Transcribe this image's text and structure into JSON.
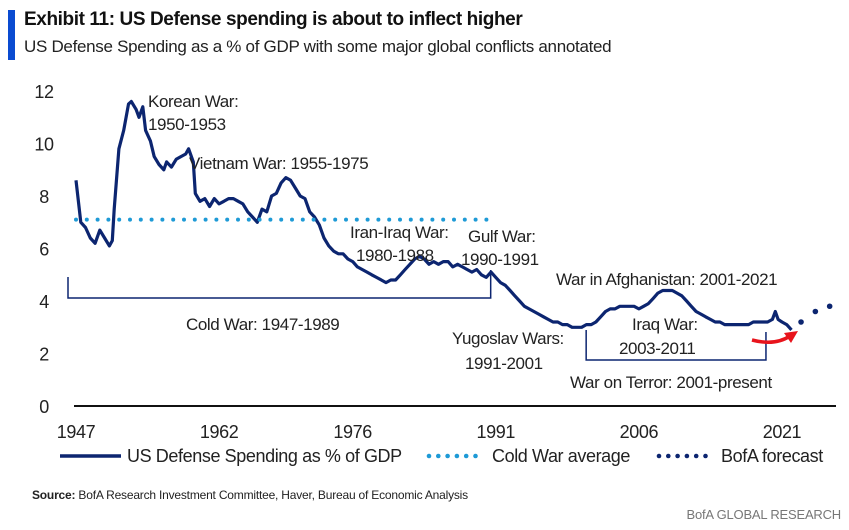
{
  "header": {
    "title": "Exhibit 11: US Defense spending is about to inflect higher",
    "subtitle": "US Defense Spending as a % of GDP with some major global conflicts annotated"
  },
  "colors": {
    "accent": "#0a4bd1",
    "main_series": "#0c2570",
    "cold_war_avg": "#1e9ad6",
    "forecast": "#0c2570",
    "arrow": "#e8141c",
    "axis": "#111111"
  },
  "chart_data": {
    "type": "line",
    "title": "US Defense Spending as a % of GDP with some major global conflicts annotated",
    "xlabel": "",
    "ylabel": "",
    "xlim": [
      1947,
      2027
    ],
    "ylim": [
      0,
      12
    ],
    "grid": false,
    "x_ticks": [
      "1947",
      "1962",
      "1976",
      "1991",
      "2006",
      "2021"
    ],
    "y_ticks": [
      "0",
      "2",
      "4",
      "6",
      "8",
      "10",
      "12"
    ],
    "legend_position": "bottom",
    "series": [
      {
        "name": "US Defense Spending as % of GDP",
        "style": "solid",
        "points": [
          [
            1947,
            8.6
          ],
          [
            1947.5,
            7.0
          ],
          [
            1948,
            6.8
          ],
          [
            1948.5,
            6.4
          ],
          [
            1949,
            6.2
          ],
          [
            1949.5,
            6.7
          ],
          [
            1950,
            6.4
          ],
          [
            1950.5,
            6.1
          ],
          [
            1950.8,
            6.3
          ],
          [
            1951,
            7.5
          ],
          [
            1951.5,
            9.8
          ],
          [
            1952,
            10.5
          ],
          [
            1952.5,
            11.5
          ],
          [
            1952.8,
            11.6
          ],
          [
            1953.3,
            11.3
          ],
          [
            1953.6,
            11.0
          ],
          [
            1954,
            11.4
          ],
          [
            1954.3,
            10.5
          ],
          [
            1954.8,
            10.1
          ],
          [
            1955.2,
            9.5
          ],
          [
            1955.7,
            9.2
          ],
          [
            1956.2,
            9.0
          ],
          [
            1956.5,
            9.3
          ],
          [
            1957,
            9.1
          ],
          [
            1957.5,
            9.4
          ],
          [
            1958,
            9.5
          ],
          [
            1958.5,
            9.6
          ],
          [
            1958.8,
            9.8
          ],
          [
            1959.3,
            9.3
          ],
          [
            1959.5,
            8.1
          ],
          [
            1960,
            7.8
          ],
          [
            1960.5,
            7.9
          ],
          [
            1961,
            7.6
          ],
          [
            1961.5,
            7.9
          ],
          [
            1962,
            7.7
          ],
          [
            1962.5,
            7.8
          ],
          [
            1963,
            7.9
          ],
          [
            1963.5,
            7.9
          ],
          [
            1964,
            7.8
          ],
          [
            1964.5,
            7.7
          ],
          [
            1965,
            7.4
          ],
          [
            1965.5,
            7.2
          ],
          [
            1966,
            7.0
          ],
          [
            1966.5,
            7.5
          ],
          [
            1967,
            7.4
          ],
          [
            1967.5,
            8.0
          ],
          [
            1968,
            8.1
          ],
          [
            1968.5,
            8.5
          ],
          [
            1969,
            8.7
          ],
          [
            1969.5,
            8.6
          ],
          [
            1970,
            8.3
          ],
          [
            1970.5,
            8.0
          ],
          [
            1971,
            7.9
          ],
          [
            1971.5,
            7.4
          ],
          [
            1972,
            7.2
          ],
          [
            1972.5,
            6.9
          ],
          [
            1973,
            6.4
          ],
          [
            1973.5,
            6.1
          ],
          [
            1974,
            5.9
          ],
          [
            1974.5,
            5.8
          ],
          [
            1975,
            5.8
          ],
          [
            1975.5,
            5.6
          ],
          [
            1976,
            5.5
          ],
          [
            1976.5,
            5.3
          ],
          [
            1977,
            5.2
          ],
          [
            1977.5,
            5.1
          ],
          [
            1978,
            5.0
          ],
          [
            1978.5,
            4.9
          ],
          [
            1979,
            4.8
          ],
          [
            1979.5,
            4.7
          ],
          [
            1980,
            4.8
          ],
          [
            1980.5,
            4.8
          ],
          [
            1981,
            5.0
          ],
          [
            1981.5,
            5.2
          ],
          [
            1982,
            5.4
          ],
          [
            1982.5,
            5.6
          ],
          [
            1983,
            5.7
          ],
          [
            1983.5,
            5.6
          ],
          [
            1984,
            5.4
          ],
          [
            1984.5,
            5.5
          ],
          [
            1985,
            5.4
          ],
          [
            1985.5,
            5.5
          ],
          [
            1986,
            5.5
          ],
          [
            1986.5,
            5.3
          ],
          [
            1987,
            5.4
          ],
          [
            1987.5,
            5.3
          ],
          [
            1988,
            5.2
          ],
          [
            1988.5,
            5.1
          ],
          [
            1989,
            5.2
          ],
          [
            1989.5,
            5.0
          ],
          [
            1990,
            4.9
          ],
          [
            1990.5,
            5.1
          ],
          [
            1991,
            4.9
          ],
          [
            1991.5,
            4.7
          ],
          [
            1992,
            4.6
          ],
          [
            1992.5,
            4.4
          ],
          [
            1993,
            4.2
          ],
          [
            1993.5,
            4.0
          ],
          [
            1994,
            3.8
          ],
          [
            1994.5,
            3.7
          ],
          [
            1995,
            3.6
          ],
          [
            1995.5,
            3.5
          ],
          [
            1996,
            3.4
          ],
          [
            1996.5,
            3.3
          ],
          [
            1997,
            3.2
          ],
          [
            1997.5,
            3.2
          ],
          [
            1998,
            3.1
          ],
          [
            1998.5,
            3.1
          ],
          [
            1999,
            3.0
          ],
          [
            1999.5,
            3.0
          ],
          [
            2000,
            3.0
          ],
          [
            2000.5,
            3.1
          ],
          [
            2001,
            3.1
          ],
          [
            2001.5,
            3.2
          ],
          [
            2002,
            3.4
          ],
          [
            2002.5,
            3.6
          ],
          [
            2003,
            3.7
          ],
          [
            2003.5,
            3.7
          ],
          [
            2004,
            3.8
          ],
          [
            2004.5,
            3.8
          ],
          [
            2005,
            3.8
          ],
          [
            2005.5,
            3.8
          ],
          [
            2006,
            3.7
          ],
          [
            2006.5,
            3.8
          ],
          [
            2007,
            3.9
          ],
          [
            2007.5,
            4.1
          ],
          [
            2008,
            4.3
          ],
          [
            2008.5,
            4.4
          ],
          [
            2009,
            4.4
          ],
          [
            2009.5,
            4.4
          ],
          [
            2010,
            4.3
          ],
          [
            2010.5,
            4.2
          ],
          [
            2011,
            4.0
          ],
          [
            2011.5,
            3.8
          ],
          [
            2012,
            3.6
          ],
          [
            2012.5,
            3.5
          ],
          [
            2013,
            3.4
          ],
          [
            2013.5,
            3.3
          ],
          [
            2014,
            3.2
          ],
          [
            2014.5,
            3.2
          ],
          [
            2015,
            3.1
          ],
          [
            2015.5,
            3.1
          ],
          [
            2016,
            3.1
          ],
          [
            2016.5,
            3.1
          ],
          [
            2017,
            3.1
          ],
          [
            2017.5,
            3.1
          ],
          [
            2018,
            3.2
          ],
          [
            2018.5,
            3.2
          ],
          [
            2019,
            3.2
          ],
          [
            2019.5,
            3.2
          ],
          [
            2020,
            3.3
          ],
          [
            2020.3,
            3.6
          ],
          [
            2020.6,
            3.3
          ],
          [
            2021,
            3.2
          ],
          [
            2021.5,
            3.1
          ],
          [
            2022,
            2.9
          ]
        ]
      },
      {
        "name": "Cold War average",
        "style": "dotted",
        "points": [
          [
            1947,
            7.1
          ],
          [
            1989,
            7.1
          ]
        ]
      },
      {
        "name": "BofA forecast",
        "style": "dotted",
        "points": [
          [
            2023,
            3.2
          ],
          [
            2024.5,
            3.6
          ],
          [
            2026,
            3.8
          ]
        ]
      }
    ],
    "annotations": [
      {
        "id": "korean",
        "lines": [
          "Korean War:",
          "1950-1953"
        ]
      },
      {
        "id": "vietnam",
        "lines": [
          "Vietnam War: 1955-1975"
        ]
      },
      {
        "id": "iran-iraq",
        "lines": [
          "Iran-Iraq War:",
          "1980-1988"
        ]
      },
      {
        "id": "gulf",
        "lines": [
          "Gulf War:",
          "1990-1991"
        ]
      },
      {
        "id": "cold-war",
        "lines": [
          "Cold War: 1947-1989"
        ]
      },
      {
        "id": "yugoslav",
        "lines": [
          "Yugoslav Wars:",
          "1991-2001"
        ]
      },
      {
        "id": "afghanistan",
        "lines": [
          "War in Afghanistan: 2001-2021"
        ]
      },
      {
        "id": "iraq",
        "lines": [
          "Iraq War:",
          "2003-2011"
        ]
      },
      {
        "id": "war-on-terror",
        "lines": [
          "War on Terror:  2001-present"
        ]
      }
    ],
    "brackets": [
      {
        "id": "cold-war-bracket",
        "from": 1947,
        "to": 1989
      },
      {
        "id": "war-on-terror-bracket",
        "from": 2001,
        "to": 2021
      }
    ]
  },
  "legend": {
    "items": [
      {
        "label": "US Defense Spending as % of GDP",
        "style": "solid"
      },
      {
        "label": "Cold War average",
        "style": "dotted-light"
      },
      {
        "label": "BofA forecast",
        "style": "dotted-dark"
      }
    ]
  },
  "footer": {
    "source_label": "Source:",
    "source_text": "BofA Research Investment Committee, Haver, Bureau of Economic Analysis",
    "brand": "BofA GLOBAL RESEARCH"
  }
}
